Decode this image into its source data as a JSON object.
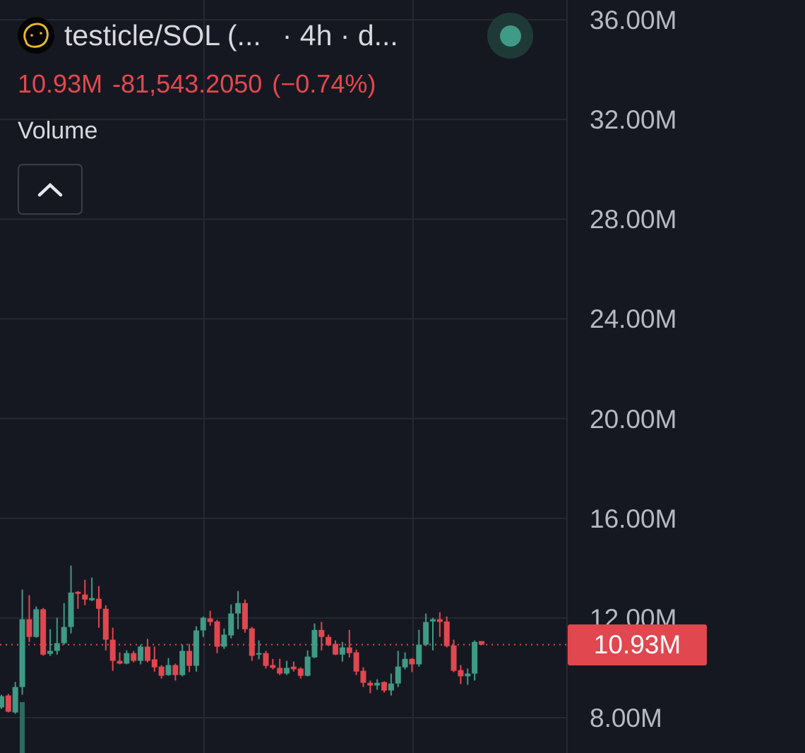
{
  "header": {
    "symbol": "testicle/SOL (...",
    "interval": "· 4h · d...",
    "logo_icon": "token-face-icon",
    "status_color": "#3f9a86"
  },
  "ohlc_line": {
    "last": "10.93M",
    "change": "-81,543.2050",
    "change_pct": "(−0.74%)",
    "color": "#e5484d"
  },
  "volume": {
    "label": "Volume",
    "collapse_icon": "chevron-up-icon"
  },
  "last_price_label": "10.93M",
  "colors": {
    "up": "#3f9a86",
    "down": "#e0474f",
    "background": "#161821",
    "grid": "#262932"
  },
  "chart_data": {
    "type": "candlestick",
    "title": "",
    "xlabel": "",
    "ylabel": "",
    "ylim": [
      8,
      36
    ],
    "y_ticks": [
      "36.00M",
      "32.00M",
      "28.00M",
      "24.00M",
      "20.00M",
      "16.00M",
      "12.00M",
      "8.00M"
    ],
    "y_tick_values": [
      36,
      32,
      28,
      24,
      20,
      16,
      12,
      8
    ],
    "grid": true,
    "last_price": 10.93,
    "candles": [
      [
        8.41,
        8.92,
        8.35,
        8.86
      ],
      [
        8.89,
        8.95,
        8.21,
        8.24
      ],
      [
        8.21,
        9.43,
        8.16,
        9.23
      ],
      [
        9.23,
        13.14,
        8.92,
        11.95
      ],
      [
        11.95,
        12.91,
        11.04,
        11.24
      ],
      [
        11.24,
        12.46,
        11.21,
        12.35
      ],
      [
        12.35,
        12.4,
        10.48,
        10.53
      ],
      [
        10.56,
        11.55,
        10.48,
        10.68
      ],
      [
        10.68,
        12.01,
        10.53,
        10.99
      ],
      [
        10.99,
        12.6,
        10.93,
        11.64
      ],
      [
        11.64,
        14.1,
        11.38,
        13.02
      ],
      [
        13.05,
        13.08,
        12.37,
        12.97
      ],
      [
        12.94,
        13.53,
        12.51,
        12.74
      ],
      [
        12.71,
        13.62,
        12.68,
        12.8
      ],
      [
        12.77,
        13.28,
        11.61,
        12.37
      ],
      [
        12.37,
        12.51,
        10.7,
        11.13
      ],
      [
        11.13,
        11.61,
        9.88,
        10.28
      ],
      [
        10.28,
        10.62,
        10.14,
        10.17
      ],
      [
        10.17,
        10.7,
        10.14,
        10.59
      ],
      [
        10.59,
        10.68,
        10.22,
        10.28
      ],
      [
        10.28,
        10.93,
        10.14,
        10.85
      ],
      [
        10.85,
        11.16,
        10.22,
        10.28
      ],
      [
        10.34,
        10.85,
        9.85,
        10.02
      ],
      [
        10.05,
        10.11,
        9.57,
        9.68
      ],
      [
        9.71,
        10.39,
        9.68,
        10.11
      ],
      [
        10.11,
        10.17,
        9.49,
        9.71
      ],
      [
        9.71,
        10.93,
        9.66,
        10.68
      ],
      [
        10.68,
        10.96,
        9.83,
        10.08
      ],
      [
        10.08,
        11.67,
        9.85,
        11.5
      ],
      [
        11.5,
        12.06,
        11.24,
        12.01
      ],
      [
        11.98,
        12.29,
        11.69,
        11.84
      ],
      [
        11.86,
        11.92,
        10.59,
        10.85
      ],
      [
        10.85,
        11.58,
        10.76,
        11.33
      ],
      [
        11.3,
        12.54,
        11.18,
        12.18
      ],
      [
        12.18,
        13.08,
        11.55,
        12.6
      ],
      [
        12.6,
        12.74,
        11.41,
        11.55
      ],
      [
        11.58,
        11.64,
        10.28,
        10.48
      ],
      [
        10.53,
        11.1,
        10.34,
        10.59
      ],
      [
        10.59,
        10.68,
        9.97,
        10.08
      ],
      [
        10.11,
        10.36,
        9.94,
        10.0
      ],
      [
        10.0,
        10.36,
        9.71,
        9.77
      ],
      [
        9.77,
        10.28,
        9.71,
        10.0
      ],
      [
        10.05,
        10.25,
        9.85,
        9.94
      ],
      [
        9.97,
        10.02,
        9.57,
        9.68
      ],
      [
        9.68,
        10.7,
        9.66,
        10.45
      ],
      [
        10.42,
        11.78,
        10.39,
        11.52
      ],
      [
        11.52,
        11.84,
        10.7,
        11.24
      ],
      [
        11.24,
        11.33,
        10.87,
        10.9
      ],
      [
        10.96,
        11.1,
        10.51,
        10.53
      ],
      [
        10.53,
        11.04,
        10.25,
        10.82
      ],
      [
        10.82,
        11.52,
        10.42,
        10.59
      ],
      [
        10.62,
        10.73,
        9.71,
        9.85
      ],
      [
        9.88,
        10.02,
        9.23,
        9.4
      ],
      [
        9.4,
        9.49,
        8.98,
        9.29
      ],
      [
        9.29,
        9.54,
        9.12,
        9.4
      ],
      [
        9.43,
        9.46,
        9.01,
        9.09
      ],
      [
        9.09,
        9.77,
        8.89,
        9.37
      ],
      [
        9.37,
        10.68,
        9.23,
        10.05
      ],
      [
        10.02,
        10.62,
        9.94,
        10.36
      ],
      [
        10.36,
        10.39,
        9.83,
        10.14
      ],
      [
        10.14,
        11.52,
        10.05,
        10.93
      ],
      [
        10.93,
        12.18,
        10.87,
        11.84
      ],
      [
        11.86,
        12.01,
        10.7,
        11.95
      ],
      [
        11.95,
        12.23,
        11.24,
        11.84
      ],
      [
        11.86,
        12.06,
        10.82,
        10.87
      ],
      [
        10.9,
        11.13,
        9.83,
        9.88
      ],
      [
        9.91,
        10.11,
        9.35,
        9.66
      ],
      [
        9.66,
        9.97,
        9.32,
        9.77
      ],
      [
        9.77,
        11.1,
        9.49,
        11.04
      ],
      [
        11.07,
        11.07,
        10.93,
        10.93
      ]
    ],
    "candle_fields": [
      "open",
      "high",
      "low",
      "close"
    ]
  }
}
